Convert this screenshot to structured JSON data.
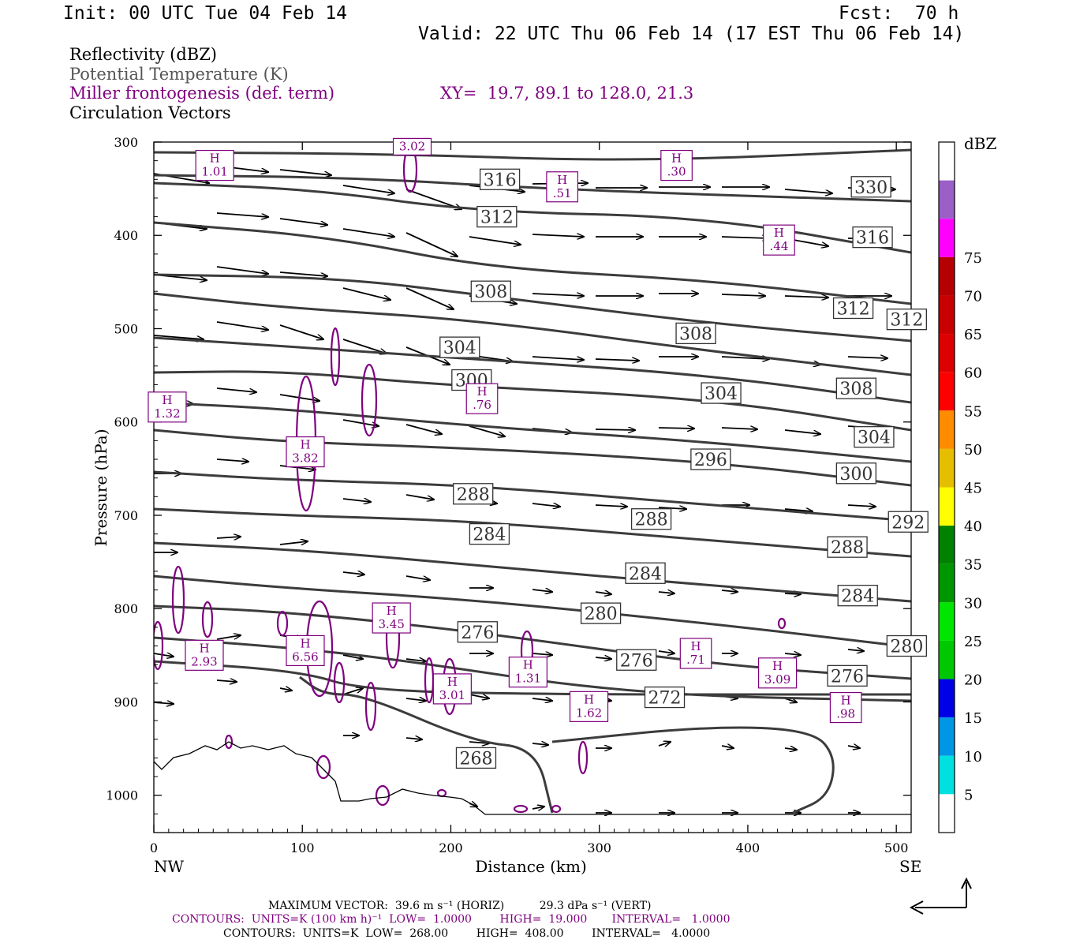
{
  "header": {
    "init": "Init: 00 UTC Tue 04 Feb 14",
    "fcst": "Fcst:  70 h",
    "valid": "Valid: 22 UTC Thu 06 Feb 14 (17 EST Thu 06 Feb 14)"
  },
  "fields": {
    "reflectivity": "Reflectivity (dBZ)",
    "theta": "Potential Temperature (K)",
    "frontogenesis": "Miller frontogenesis (def. term)",
    "xy": "XY=  19.7, 89.1 to 128.0, 21.3",
    "vectors": "Circulation Vectors"
  },
  "footer": {
    "max_vector": "MAXIMUM VECTOR:  39.6 m s⁻¹ (HORIZ)          29.3 dPa s⁻¹ (VERT)",
    "contours_fronto": "CONTOURS:  UNITS=K (100 km h)⁻¹  LOW=  1.0000        HIGH=  19.000       INTERVAL=   1.0000",
    "contours_theta": "CONTOURS:  UNITS=K  LOW=  268.00        HIGH=  408.00        INTERVAL=   4.0000"
  },
  "colors": {
    "theta": "#3c3c3c",
    "fronto": "#7f007f",
    "vector": "#000000"
  },
  "chart_data": {
    "type": "contour-cross-section",
    "xlabel": "Distance (km)",
    "ylabel": "Pressure (hPa)",
    "xlim": [
      0,
      510
    ],
    "ylim": [
      1040,
      300
    ],
    "xticks": [
      0,
      100,
      200,
      300,
      400,
      500
    ],
    "yticks": [
      300,
      400,
      500,
      600,
      700,
      800,
      900,
      1000
    ],
    "left_end": "NW",
    "right_end": "SE",
    "theta_labels": [
      {
        "text": "316",
        "x": 233,
        "p": 340
      },
      {
        "text": "312",
        "x": 231,
        "p": 380
      },
      {
        "text": "308",
        "x": 227,
        "p": 460
      },
      {
        "text": "304",
        "x": 206,
        "p": 520
      },
      {
        "text": "300",
        "x": 214,
        "p": 555
      },
      {
        "text": "288",
        "x": 215,
        "p": 677
      },
      {
        "text": "284",
        "x": 226,
        "p": 720
      },
      {
        "text": "276",
        "x": 218,
        "p": 825
      },
      {
        "text": "268",
        "x": 217,
        "p": 960
      },
      {
        "text": "330",
        "x": 483,
        "p": 348
      },
      {
        "text": "316",
        "x": 484,
        "p": 402
      },
      {
        "text": "312",
        "x": 471,
        "p": 478
      },
      {
        "text": "312",
        "x": 507,
        "p": 490
      },
      {
        "text": "308",
        "x": 365,
        "p": 505
      },
      {
        "text": "308",
        "x": 473,
        "p": 564
      },
      {
        "text": "304",
        "x": 382,
        "p": 569
      },
      {
        "text": "304",
        "x": 485,
        "p": 616
      },
      {
        "text": "300",
        "x": 473,
        "p": 655
      },
      {
        "text": "296",
        "x": 375,
        "p": 640
      },
      {
        "text": "288",
        "x": 335,
        "p": 704
      },
      {
        "text": "292",
        "x": 508,
        "p": 707
      },
      {
        "text": "288",
        "x": 467,
        "p": 734
      },
      {
        "text": "284",
        "x": 331,
        "p": 762
      },
      {
        "text": "284",
        "x": 474,
        "p": 786
      },
      {
        "text": "280",
        "x": 301,
        "p": 805
      },
      {
        "text": "280",
        "x": 507,
        "p": 840
      },
      {
        "text": "276",
        "x": 325,
        "p": 855
      },
      {
        "text": "276",
        "x": 467,
        "p": 872
      },
      {
        "text": "272",
        "x": 344,
        "p": 895
      }
    ],
    "fronto_maxima": [
      {
        "text": "H 1.01",
        "x": 41,
        "p": 325
      },
      {
        "text": "3.02",
        "x": 174,
        "p": 305
      },
      {
        "text": "H .51",
        "x": 275,
        "p": 348
      },
      {
        "text": "H .30",
        "x": 352,
        "p": 325
      },
      {
        "text": "H .44",
        "x": 421,
        "p": 405
      },
      {
        "text": "H 1.32",
        "x": 9,
        "p": 584
      },
      {
        "text": "H .76",
        "x": 221,
        "p": 575
      },
      {
        "text": "H 3.82",
        "x": 102,
        "p": 632
      },
      {
        "text": "H 2.93",
        "x": 34,
        "p": 850
      },
      {
        "text": "H 6.56",
        "x": 102,
        "p": 845
      },
      {
        "text": "H 3.45",
        "x": 160,
        "p": 810
      },
      {
        "text": "H 3.01",
        "x": 201,
        "p": 886
      },
      {
        "text": "H 1.31",
        "x": 252,
        "p": 868
      },
      {
        "text": "H 1.62",
        "x": 293,
        "p": 905
      },
      {
        "text": "H .71",
        "x": 365,
        "p": 848
      },
      {
        "text": "H 3.09",
        "x": 420,
        "p": 869
      },
      {
        "text": "H .98",
        "x": 466,
        "p": 906
      }
    ],
    "colorbar": {
      "label": "dBZ",
      "levels": [
        "5",
        "10",
        "15",
        "20",
        "25",
        "30",
        "35",
        "40",
        "45",
        "50",
        "55",
        "60",
        "65",
        "70",
        "75"
      ],
      "colors": [
        "#ffffff",
        "#00e0e0",
        "#0096e6",
        "#0000e6",
        "#00c800",
        "#00e600",
        "#009600",
        "#008200",
        "#ffff00",
        "#e6be00",
        "#ff8c00",
        "#ff0000",
        "#dc0000",
        "#c80000",
        "#b40000",
        "#ff00ff",
        "#9b5fc8",
        "#ffffff"
      ]
    }
  }
}
